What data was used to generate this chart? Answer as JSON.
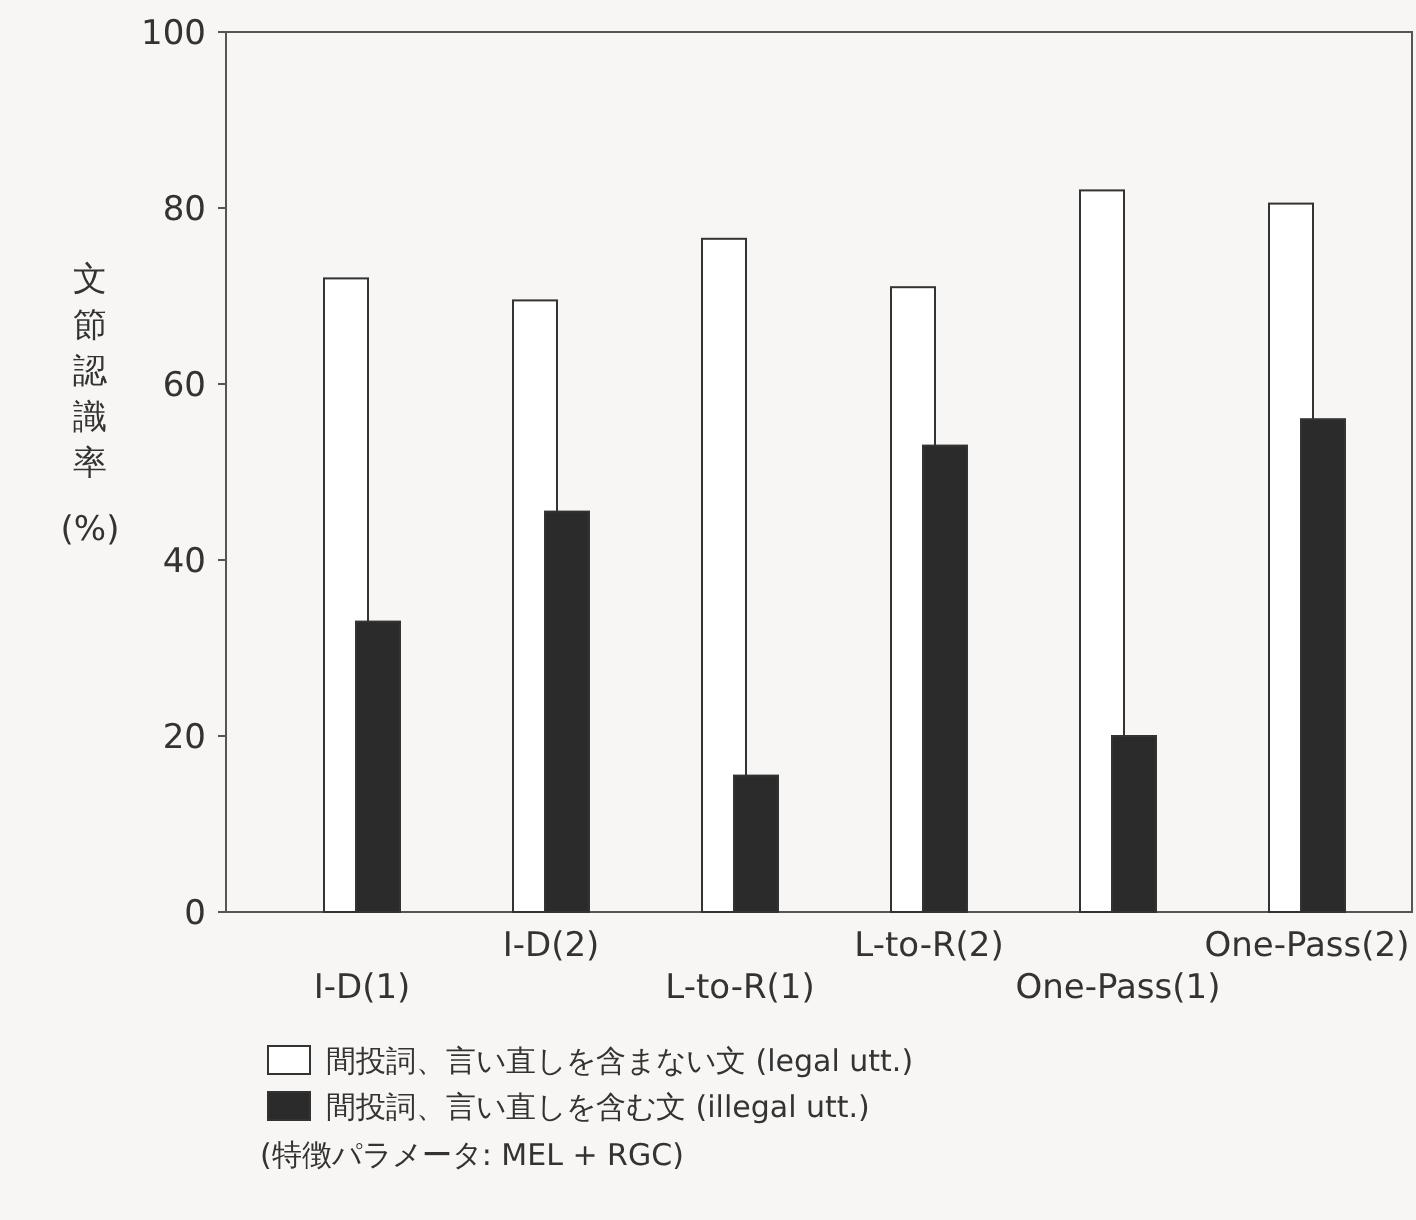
{
  "chart_data": {
    "type": "bar",
    "ylabel": "文節認識率 (%)",
    "categories": [
      "I-D(1)",
      "I-D(2)",
      "L-to-R(1)",
      "L-to-R(2)",
      "One-Pass(1)",
      "One-Pass(2)"
    ],
    "series": [
      {
        "name": "間投詞、言い直しを含まない文 (legal utt.)",
        "color": "#ffffff",
        "values": [
          72,
          69.5,
          76.5,
          71,
          82,
          80.5
        ]
      },
      {
        "name": "間投詞、言い直しを含む文 (illegal utt.)",
        "color": "#2b2b2b",
        "values": [
          33,
          45.5,
          15.5,
          53,
          20,
          56
        ]
      }
    ],
    "ylim": [
      0,
      100
    ],
    "yticks": [
      0,
      20,
      40,
      60,
      80,
      100
    ],
    "grid": false,
    "legend": "bottom",
    "annotations": [
      "(特徴パラメータ: MEL + RGC)"
    ]
  }
}
